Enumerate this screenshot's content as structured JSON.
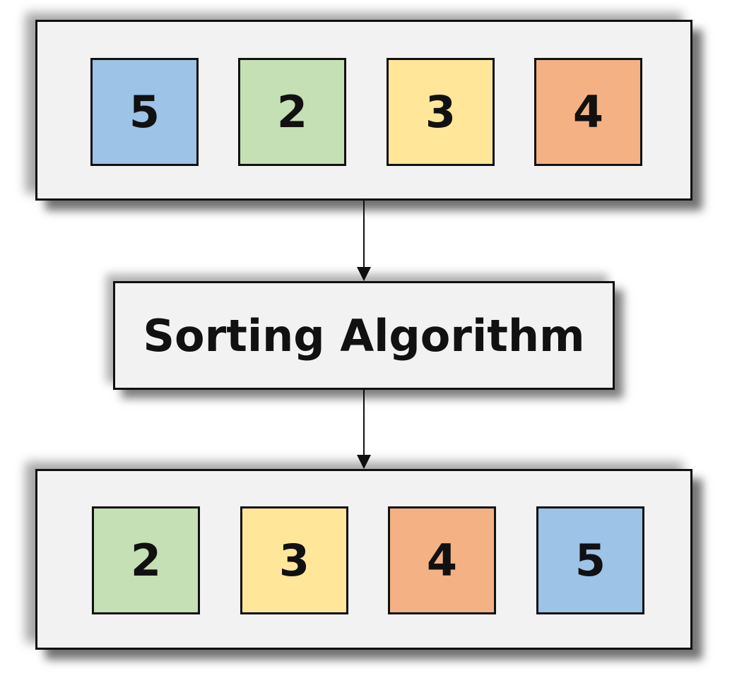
{
  "colors": {
    "blue": "#9dc3e6",
    "green": "#c5e0b4",
    "yellow": "#ffe699",
    "orange": "#f4b183",
    "panel_bg": "#f2f2f2",
    "stroke": "#111111"
  },
  "input_array": [
    {
      "value": "5",
      "color": "#9dc3e6"
    },
    {
      "value": "2",
      "color": "#c5e0b4"
    },
    {
      "value": "3",
      "color": "#ffe699"
    },
    {
      "value": "4",
      "color": "#f4b183"
    }
  ],
  "algorithm": {
    "label": "Sorting Algorithm"
  },
  "output_array": [
    {
      "value": "2",
      "color": "#c5e0b4"
    },
    {
      "value": "3",
      "color": "#ffe699"
    },
    {
      "value": "4",
      "color": "#f4b183"
    },
    {
      "value": "5",
      "color": "#9dc3e6"
    }
  ]
}
